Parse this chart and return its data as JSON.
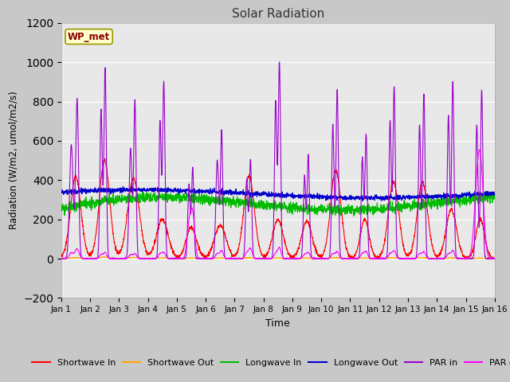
{
  "title": "Solar Radiation",
  "xlabel": "Time",
  "ylabel": "Radiation (W/m2, umol/m2/s)",
  "ylim": [
    -200,
    1200
  ],
  "yticks": [
    -200,
    0,
    200,
    400,
    600,
    800,
    1000,
    1200
  ],
  "xlim": [
    0,
    15
  ],
  "xtick_labels": [
    "Jan 1",
    "Jan 2",
    "Jan 3",
    "Jan 4",
    "Jan 5",
    "Jan 6",
    "Jan 7",
    "Jan 8",
    "Jan 9",
    "Jan 10",
    "Jan 11",
    "Jan 12",
    "Jan 13",
    "Jan 14",
    "Jan 15",
    "Jan 16"
  ],
  "annotation_text": "WP_met",
  "fig_bg_color": "#c8c8c8",
  "plot_bg_color": "#e8e8e8",
  "inner_bg_color": "#d8d8d8",
  "series_colors": {
    "shortwave_in": "#ff0000",
    "shortwave_out": "#ffa500",
    "longwave_in": "#00bb00",
    "longwave_out": "#0000cc",
    "par_in": "#9900cc",
    "par_out": "#ff00ff"
  },
  "legend_labels": [
    "Shortwave In",
    "Shortwave Out",
    "Longwave In",
    "Longwave Out",
    "PAR in",
    "PAR out"
  ]
}
